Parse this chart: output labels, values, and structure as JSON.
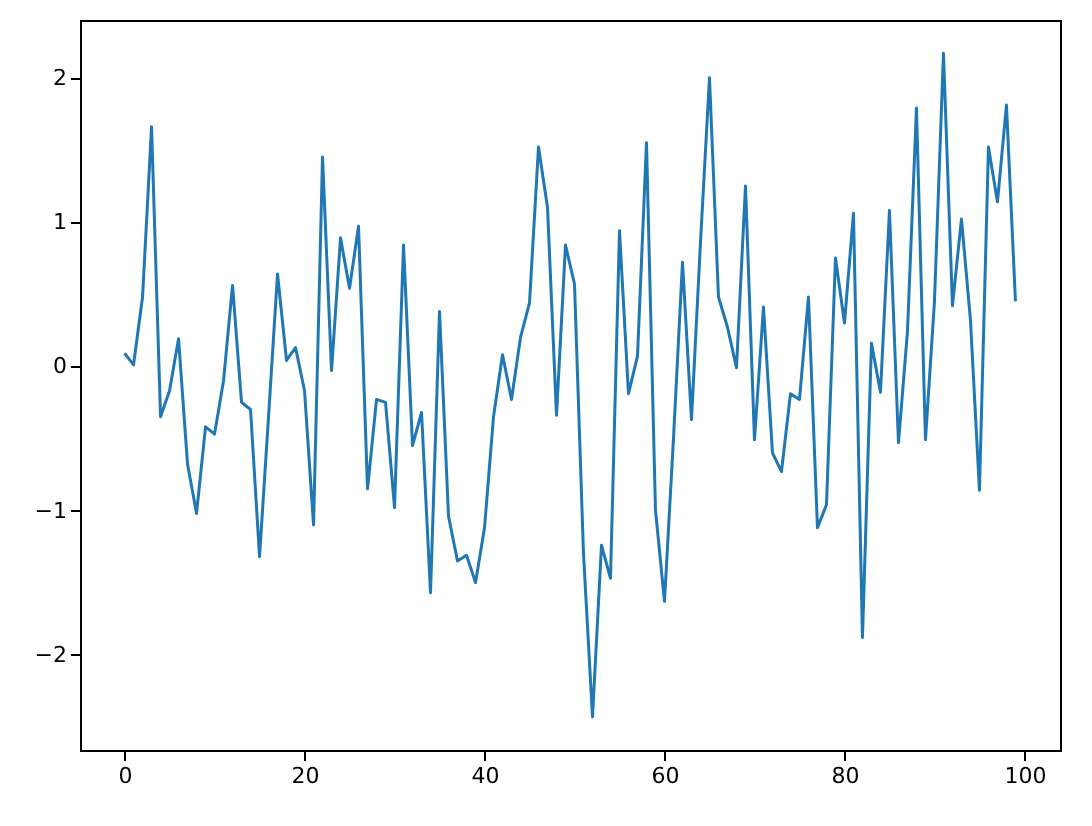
{
  "chart_data": {
    "type": "line",
    "x": [
      0,
      1,
      2,
      3,
      4,
      5,
      6,
      7,
      8,
      9,
      10,
      11,
      12,
      13,
      14,
      15,
      16,
      17,
      18,
      19,
      20,
      21,
      22,
      23,
      24,
      25,
      26,
      27,
      28,
      29,
      30,
      31,
      32,
      33,
      34,
      35,
      36,
      37,
      38,
      39,
      40,
      41,
      42,
      43,
      44,
      45,
      46,
      47,
      48,
      49,
      50,
      51,
      52,
      53,
      54,
      55,
      56,
      57,
      58,
      59,
      60,
      61,
      62,
      63,
      64,
      65,
      66,
      67,
      68,
      69,
      70,
      71,
      72,
      73,
      74,
      75,
      76,
      77,
      78,
      79,
      80,
      81,
      82,
      83,
      84,
      85,
      86,
      87,
      88,
      89,
      90,
      91,
      92,
      93,
      94,
      95,
      96,
      97,
      98,
      99
    ],
    "series": [
      {
        "color": "#1f77b4",
        "values": [
          0.09,
          0.01,
          0.48,
          1.66,
          -0.35,
          -0.17,
          0.19,
          -0.68,
          -1.02,
          -0.42,
          -0.47,
          -0.1,
          0.56,
          -0.25,
          -0.3,
          -1.32,
          -0.35,
          0.64,
          0.04,
          0.13,
          -0.17,
          -1.1,
          1.45,
          -0.03,
          0.89,
          0.54,
          0.97,
          -0.85,
          -0.23,
          -0.25,
          -0.98,
          0.84,
          -0.55,
          -0.32,
          -1.57,
          0.38,
          -1.04,
          -1.35,
          -1.31,
          -1.5,
          -1.12,
          -0.35,
          0.08,
          -0.23,
          0.2,
          0.44,
          1.52,
          1.1,
          -0.34,
          0.84,
          0.57,
          -1.3,
          -2.43,
          -1.24,
          -1.47,
          0.94,
          -0.19,
          0.07,
          1.55,
          -1.0,
          -1.63,
          -0.5,
          0.72,
          -0.37,
          0.86,
          2.0,
          0.48,
          0.27,
          -0.01,
          1.25,
          -0.51,
          0.41,
          -0.6,
          -0.73,
          -0.19,
          -0.23,
          0.48,
          -1.12,
          -0.96,
          0.75,
          0.3,
          1.06,
          -1.88,
          0.16,
          -0.18,
          1.08,
          -0.53,
          0.24,
          1.79,
          -0.51,
          0.45,
          2.17,
          0.42,
          1.02,
          0.32,
          -0.86,
          1.52,
          1.14,
          1.81,
          0.45
        ]
      }
    ],
    "xlim": [
      -4.95,
      103.95
    ],
    "ylim": [
      -2.66,
      2.4
    ],
    "xticks": [
      0,
      20,
      40,
      60,
      80,
      100
    ],
    "yticks": [
      -2,
      -1,
      0,
      1,
      2
    ],
    "grid": false,
    "line_style": "solid"
  }
}
